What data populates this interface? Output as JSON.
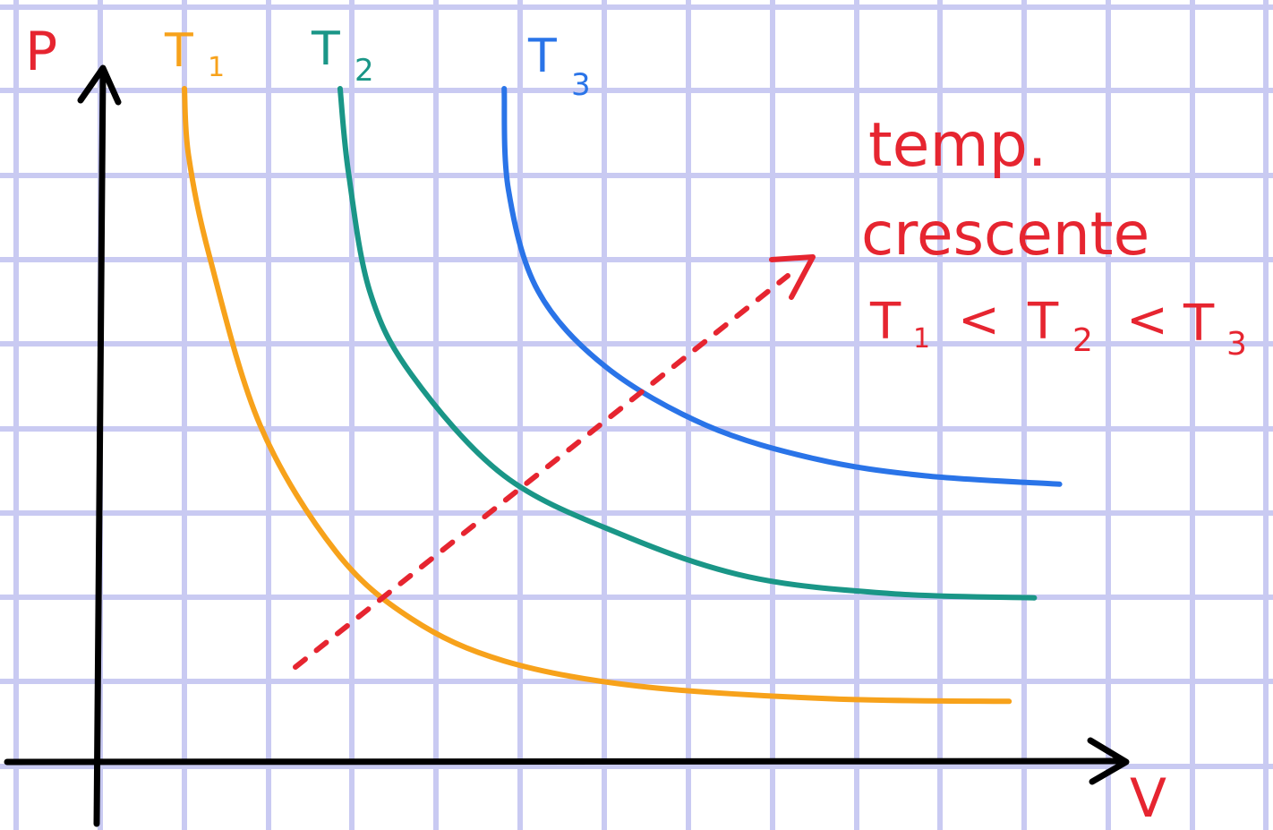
{
  "chart_data": {
    "type": "line",
    "title": "",
    "xlabel": "V",
    "ylabel": "P",
    "grid": true,
    "series": [
      {
        "name": "T1",
        "color": "#f7a21b",
        "x": [
          1.0,
          1.05,
          1.3,
          1.9,
          2.8,
          3.7,
          4.8,
          6.4,
          8.7,
          10.8
        ],
        "y": [
          8.0,
          7.2,
          6.0,
          4.0,
          2.5,
          1.7,
          1.2,
          0.9,
          0.75,
          0.72
        ]
      },
      {
        "name": "T2",
        "color": "#1a9687",
        "x": [
          2.85,
          2.95,
          3.2,
          3.7,
          4.8,
          6.2,
          7.7,
          9.4,
          11.1
        ],
        "y": [
          8.0,
          7.0,
          5.6,
          4.6,
          3.4,
          2.7,
          2.2,
          2.0,
          1.95
        ]
      },
      {
        "name": "T3",
        "color": "#2a74e8",
        "x": [
          4.8,
          4.85,
          5.2,
          6.0,
          7.2,
          8.5,
          9.8,
          11.4
        ],
        "y": [
          8.0,
          6.8,
          5.6,
          4.7,
          4.0,
          3.6,
          3.4,
          3.3
        ]
      }
    ],
    "labels": {
      "p": "P",
      "v": "V",
      "t1": {
        "main": "T",
        "sub": "1"
      },
      "t2": {
        "main": "T",
        "sub": "2"
      },
      "t3": {
        "main": "T",
        "sub": "3"
      }
    },
    "annotation": {
      "lines": [
        "temp.",
        "crescente"
      ],
      "order": [
        {
          "main": "T",
          "sub": "1"
        },
        {
          "sep": "<"
        },
        {
          "main": "T",
          "sub": "2"
        },
        {
          "sep": "<"
        },
        {
          "main": "T",
          "sub": "3"
        }
      ],
      "color": "#e62530"
    },
    "colors": {
      "grid": "#c9caf2",
      "axis": "#000000",
      "annotation": "#e62530"
    }
  }
}
